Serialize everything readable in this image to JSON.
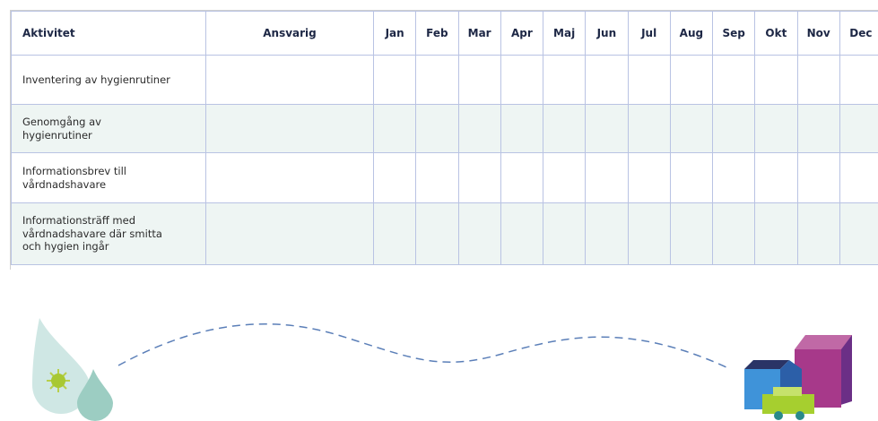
{
  "table": {
    "header": [
      "Aktivitet",
      "Ansvarig",
      "Jan",
      "Feb",
      "Mar",
      "Apr",
      "Maj",
      "Jun",
      "Jul",
      "Aug",
      "Sep",
      "Okt",
      "Nov",
      "Dec"
    ],
    "rows": [
      "Inventering av hygienrutiner",
      "Genomgång av hygienrutiner",
      "Informationsbrev till vårdnadshavare",
      "Informationsträff med vårdnadshavare där smitta och hygien ingår"
    ]
  }
}
